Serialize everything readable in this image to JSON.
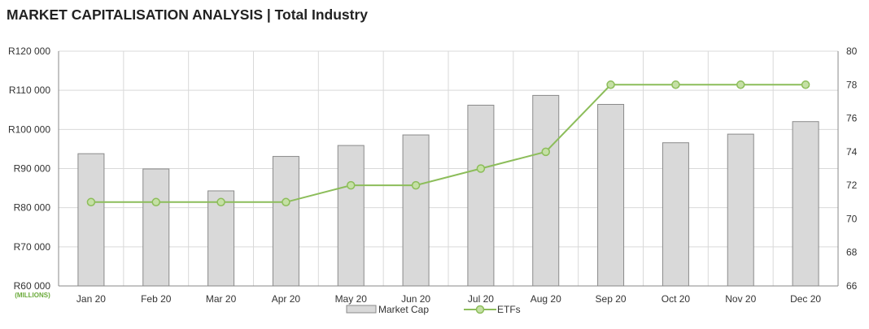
{
  "title": "MARKET CAPITALISATION ANALYSIS | Total Industry",
  "colors": {
    "bar_fill": "#d9d9d9",
    "bar_stroke": "#8a8a8a",
    "line": "#8cbd5a",
    "marker_fill": "#c5e0a5",
    "units_label": "#6aaa3a",
    "grid": "#d9d9d9"
  },
  "chart_data": {
    "type": "bar",
    "categories": [
      "Jan 20",
      "Feb 20",
      "Mar 20",
      "Apr 20",
      "May 20",
      "Jun 20",
      "Jul 20",
      "Aug 20",
      "Sep 20",
      "Oct 20",
      "Nov 20",
      "Dec 20"
    ],
    "series": [
      {
        "name": "Market Cap",
        "type": "bar",
        "axis": "left",
        "values": [
          93800,
          89900,
          84300,
          93100,
          95900,
          98600,
          106200,
          108700,
          106400,
          96600,
          98800,
          102000
        ]
      },
      {
        "name": "ETFs",
        "type": "line",
        "axis": "right",
        "values": [
          71,
          71,
          71,
          71,
          72,
          72,
          73,
          74,
          78,
          78,
          78,
          78
        ]
      }
    ],
    "y_left": {
      "ylim": [
        60000,
        120000
      ],
      "ticks": [
        60000,
        70000,
        80000,
        90000,
        100000,
        110000,
        120000
      ],
      "tick_labels": [
        "R60 000",
        "R70 000",
        "R80 000",
        "R90 000",
        "R100 000",
        "R110 000",
        "R120 000"
      ],
      "units_label": "(MILLIONS)"
    },
    "y_right": {
      "ylim": [
        66,
        80
      ],
      "ticks": [
        66,
        68,
        70,
        72,
        74,
        76,
        78,
        80
      ],
      "tick_labels": [
        "66",
        "68",
        "70",
        "72",
        "74",
        "76",
        "78",
        "80"
      ]
    },
    "grid": true,
    "legend": {
      "position": "bottom",
      "entries": [
        "Market Cap",
        "ETFs"
      ]
    }
  }
}
